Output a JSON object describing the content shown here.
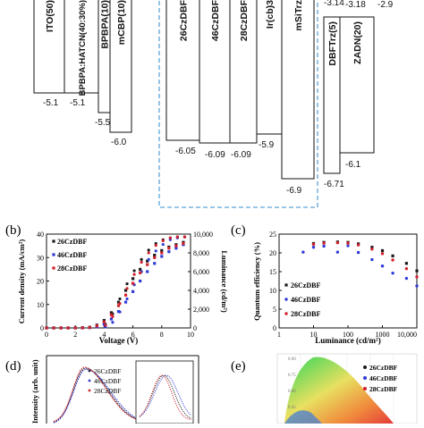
{
  "energy_diagram": {
    "layers": [
      {
        "label": "ITO(50)",
        "lumo": null,
        "homo": "-5.1"
      },
      {
        "label": "BPBPA:HATCN(40:30%)",
        "lumo": null,
        "homo": "-5.1"
      },
      {
        "label": "BPBPA(10)",
        "lumo": null,
        "homo": "-5.5"
      },
      {
        "label": "mCBP(10)",
        "lumo": null,
        "homo": "-6.0"
      },
      {
        "label": "26CzDBF",
        "lumo": null,
        "homo": "-6.05"
      },
      {
        "label": "46CzDBF",
        "lumo": null,
        "homo": "-6.09"
      },
      {
        "label": "28CzDBF",
        "lumo": null,
        "homo": "-6.09"
      },
      {
        "label": "Ir(cb)3",
        "lumo": null,
        "homo": "-5.9"
      },
      {
        "label": "mSiTrz",
        "lumo": null,
        "homo": "-6.9"
      },
      {
        "label": "DBFTrz(5)",
        "lumo": "-3.14",
        "homo": "-6.71"
      },
      {
        "label": "ZADN(20)",
        "lumo": "-3.18",
        "homo": "-6.1"
      },
      {
        "label": "",
        "lumo": "-2.9",
        "homo": null
      }
    ]
  },
  "chart_data": [
    {
      "type": "scatter",
      "panel": "(b)",
      "xlabel": "Voltage (V)",
      "ylabel": "Current density (mA/cm²)",
      "y2label": "Luminance (cd/m²)",
      "xlim": [
        0,
        10
      ],
      "ylim": [
        0,
        40
      ],
      "x_ticks": [
        "0",
        "2",
        "4",
        "6",
        "8",
        "10"
      ],
      "y_ticks": [
        "0",
        "10",
        "20",
        "30",
        "40"
      ],
      "y2_ticks": [
        "0",
        "2,000",
        "4,000",
        "6,000",
        "8,000",
        "10,000"
      ],
      "series": [
        {
          "name": "26CzDBF",
          "color": "#1a1a1a",
          "x": [
            0,
            0.5,
            1,
            1.5,
            2,
            2.5,
            3,
            3.5,
            4,
            4.5,
            5,
            5.5,
            6,
            6.5,
            7,
            7.5,
            8,
            8.5,
            9,
            9.5
          ],
          "y": [
            0,
            0,
            0,
            0,
            0,
            0.1,
            0.3,
            1.2,
            3.2,
            6.5,
            11,
            16,
            21,
            25,
            28.5,
            31,
            33,
            34.5,
            35.5,
            36.5
          ],
          "y2": [
            0,
            0,
            0,
            0,
            0,
            0,
            0,
            0,
            400,
            1500,
            3100,
            4700,
            6100,
            7300,
            8300,
            9000,
            9400,
            9600,
            9700,
            9700
          ]
        },
        {
          "name": "46CzDBF",
          "color": "#2f3bd6",
          "x": [
            0,
            0.5,
            1,
            1.5,
            2,
            2.5,
            3,
            3.5,
            4,
            4.5,
            5,
            5.5,
            6,
            6.5,
            7,
            7.5,
            8,
            8.5,
            9,
            9.5
          ],
          "y": [
            0,
            0,
            0,
            0,
            0,
            0,
            0.1,
            0.5,
            1.6,
            3.8,
            7,
            11,
            15.5,
            20,
            24,
            27.5,
            30.5,
            32.5,
            34,
            35.5
          ],
          "y2": [
            0,
            0,
            0,
            0,
            0,
            0,
            0,
            0,
            100,
            600,
            1700,
            3100,
            4600,
            6000,
            7300,
            8200,
            8900,
            9400,
            9600,
            9700
          ]
        },
        {
          "name": "28CzDBF",
          "color": "#d1202c",
          "x": [
            0,
            0.5,
            1,
            1.5,
            2,
            2.5,
            3,
            3.5,
            4,
            4.5,
            5,
            5.5,
            6,
            6.5,
            7,
            7.5,
            8,
            8.5,
            9,
            9.5
          ],
          "y": [
            0,
            0,
            0,
            0,
            0,
            0.05,
            0.2,
            0.9,
            2.6,
            5.6,
            9.5,
            14,
            19,
            23.5,
            27,
            30,
            32,
            34,
            35,
            36
          ],
          "y2": [
            0,
            0,
            0,
            0,
            0,
            0,
            0,
            0,
            300,
            1200,
            2600,
            4200,
            5700,
            7000,
            8000,
            8800,
            9300,
            9600,
            9700,
            9700
          ]
        }
      ]
    },
    {
      "type": "scatter",
      "panel": "(c)",
      "xlabel": "Luminance (cd/m²)",
      "ylabel": "Quantum efficiency (%)",
      "xscale": "log",
      "xlim": [
        1,
        10000
      ],
      "ylim": [
        0,
        25
      ],
      "x_ticks": [
        "1",
        "10",
        "100",
        "1000",
        "10,000"
      ],
      "y_ticks": [
        "0",
        "5",
        "10",
        "15",
        "20",
        "25"
      ],
      "series": [
        {
          "name": "26CzDBF",
          "color": "#1a1a1a",
          "x": [
            10,
            20,
            50,
            100,
            200,
            500,
            1000,
            2000,
            5000,
            10000
          ],
          "y": [
            22.5,
            22.8,
            22.9,
            22.8,
            22.4,
            21.5,
            20.6,
            19.2,
            17.2,
            15.2
          ]
        },
        {
          "name": "46CzDBF",
          "color": "#2f3bd6",
          "x": [
            5,
            10,
            20,
            50,
            100,
            200,
            500,
            1000,
            2000,
            5000,
            10000
          ],
          "y": [
            20.2,
            21.5,
            21.8,
            20.2,
            21.9,
            20.1,
            18.2,
            16.5,
            14.6,
            13.2,
            11.2
          ]
        },
        {
          "name": "28CzDBF",
          "color": "#d1202c",
          "x": [
            10,
            20,
            50,
            100,
            200,
            500,
            1000,
            2000,
            5000,
            10000
          ],
          "y": [
            22.3,
            22.6,
            22.7,
            22.6,
            22.1,
            21.0,
            19.8,
            18.1,
            15.8,
            13.6
          ]
        }
      ]
    },
    {
      "type": "line",
      "panel": "(d)",
      "ylabel": "Intensity (arb. unit)",
      "series": [
        {
          "name": "26CzDBF",
          "color": "#1a1a1a"
        },
        {
          "name": "46CzDBF",
          "color": "#2f3bd6"
        },
        {
          "name": "28CzDBF",
          "color": "#d1202c"
        }
      ]
    },
    {
      "type": "scatter",
      "panel": "(e)",
      "x_ticks": [
        "0.90",
        "0.75",
        "0.60",
        "0.45"
      ],
      "series": [
        {
          "name": "26CzDBF",
          "color": "#1a1a1a"
        },
        {
          "name": "46CzDBF",
          "color": "#2f3bd6"
        },
        {
          "name": "28CzDBF",
          "color": "#d1202c"
        }
      ]
    }
  ]
}
